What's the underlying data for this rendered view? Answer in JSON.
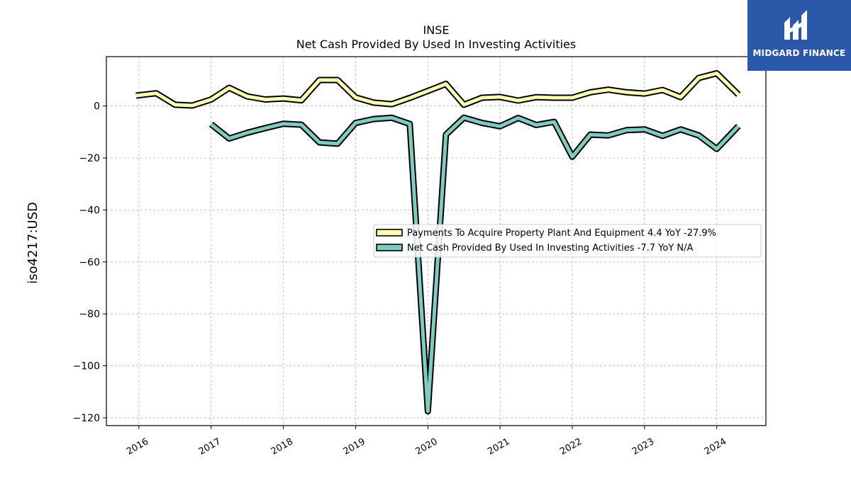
{
  "brand": {
    "name": "MIDGARD FINANCE",
    "bg_color": "#2b58a8"
  },
  "chart_data": {
    "type": "line",
    "title": "INSE",
    "subtitle": "Net Cash Provided By Used In Investing Activities",
    "ylabel": "iso4217:USD",
    "xlabel": "",
    "ylim": [
      -123,
      19
    ],
    "xlim": [
      2015.55,
      2024.68
    ],
    "yticks": [
      0,
      -20,
      -40,
      -60,
      -80,
      -100,
      -120
    ],
    "xticks": [
      "2016",
      "2017",
      "2018",
      "2019",
      "2020",
      "2021",
      "2022",
      "2023",
      "2024"
    ],
    "grid": true,
    "legend_position": "center-right",
    "series": [
      {
        "name": "Payments To Acquire Property Plant And Equipment  4.4 YoY -27.9%",
        "color": "#ffffb3",
        "x": [
          2015.96,
          2016.24,
          2016.5,
          2016.74,
          2017.0,
          2017.25,
          2017.5,
          2017.75,
          2018.0,
          2018.25,
          2018.5,
          2018.75,
          2019.0,
          2019.25,
          2019.5,
          2019.75,
          2020.0,
          2020.25,
          2020.5,
          2020.75,
          2021.0,
          2021.25,
          2021.5,
          2021.75,
          2022.0,
          2022.25,
          2022.5,
          2022.75,
          2023.0,
          2023.25,
          2023.5,
          2023.75,
          2024.0,
          2024.3
        ],
        "values": [
          4.0,
          4.9,
          0.5,
          0.2,
          2.5,
          7.0,
          3.7,
          2.5,
          2.9,
          2.2,
          10.0,
          10.0,
          3.3,
          1.3,
          0.7,
          3.1,
          5.8,
          8.5,
          0.5,
          3.2,
          3.5,
          2.1,
          3.4,
          3.2,
          3.2,
          5.3,
          6.3,
          5.3,
          4.8,
          6.2,
          3.4,
          10.8,
          12.6,
          4.4
        ]
      },
      {
        "name": "Net Cash Provided By Used In Investing Activities  -7.7 YoY N/A",
        "color": "#80cbc0",
        "x": [
          2017.0,
          2017.25,
          2017.5,
          2017.75,
          2018.0,
          2018.25,
          2018.5,
          2018.75,
          2019.0,
          2019.25,
          2019.5,
          2019.75,
          2020.0,
          2020.25,
          2020.5,
          2020.75,
          2021.0,
          2021.25,
          2021.5,
          2021.75,
          2022.0,
          2022.25,
          2022.5,
          2022.75,
          2023.0,
          2023.25,
          2023.5,
          2023.75,
          2024.0,
          2024.3
        ],
        "values": [
          -7.0,
          -12.5,
          -10.3,
          -8.5,
          -6.8,
          -7.2,
          -14.0,
          -14.5,
          -6.5,
          -5.0,
          -4.5,
          -6.9,
          -117.5,
          -11.0,
          -4.5,
          -6.5,
          -7.8,
          -4.6,
          -7.3,
          -6.1,
          -19.5,
          -11.0,
          -11.3,
          -9.3,
          -9.0,
          -11.5,
          -9.0,
          -11.3,
          -16.5,
          -7.7
        ]
      }
    ]
  }
}
